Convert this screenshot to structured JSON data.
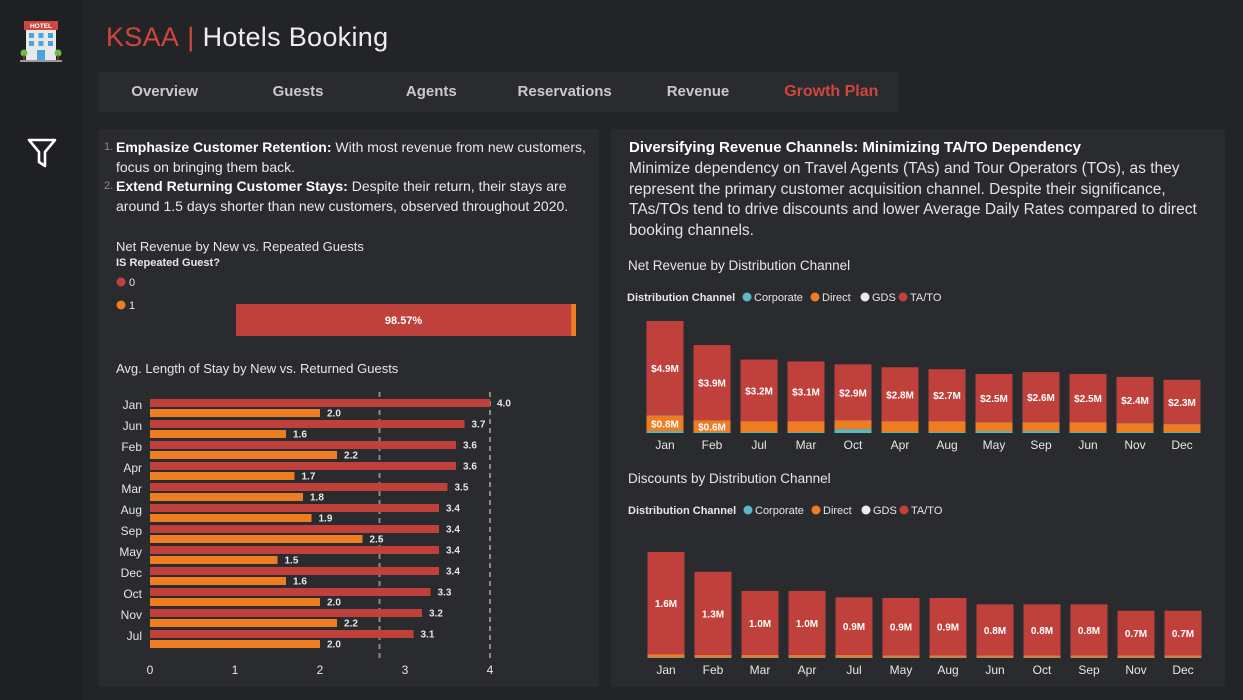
{
  "header": {
    "brand": "KSAA",
    "separator": "|",
    "app_name": "Hotels Booking",
    "logo_sign": "HOTEL"
  },
  "nav": {
    "tabs": [
      "Overview",
      "Guests",
      "Agents",
      "Reservations",
      "Revenue",
      "Growth Plan"
    ],
    "active_index": 5
  },
  "left_notes": [
    {
      "number": "1.",
      "bold": "Emphasize Customer Retention:",
      "text": " With most revenue from new customers, focus on bringing them back."
    },
    {
      "number": "2.",
      "bold": "Extend Returning Customer Stays:",
      "text": " Despite their return, their stays are around 1.5 days shorter than new customers, observed throughout 2020."
    }
  ],
  "right_heading": "Diversifying Revenue Channels: Minimizing TA/TO Dependency",
  "right_paragraph": "Minimize dependency on Travel Agents (TAs) and Tour Operators (TOs), as they represent the primary customer acquisition channel. Despite their significance, TAs/TOs tend to drive discounts and lower Average Daily Rates compared to direct booking channels.",
  "chart_data": [
    {
      "id": "repeated-guest-revenue",
      "type": "bar",
      "orientation": "horizontal",
      "stacked": "100%",
      "title": "Net Revenue by New vs. Repeated Guests",
      "legend_title": "IS Repeated Guest?",
      "legend_placement": "top-left",
      "series": [
        {
          "name": "0",
          "percent": 98.57,
          "label": "98.57%",
          "color": "#c0403c"
        },
        {
          "name": "1",
          "percent": 1.43,
          "label": "",
          "color": "#ee7d22"
        }
      ]
    },
    {
      "id": "avg-length-of-stay",
      "type": "bar",
      "orientation": "horizontal",
      "title": "Avg. Length of Stay by New vs. Returned Guests",
      "categories": [
        "Jan",
        "Jun",
        "Feb",
        "Apr",
        "Mar",
        "Aug",
        "Sep",
        "May",
        "Dec",
        "Oct",
        "Nov",
        "Jul"
      ],
      "series": [
        {
          "name": "New",
          "color": "#c0403c",
          "values": [
            4.0,
            3.7,
            3.6,
            3.6,
            3.5,
            3.4,
            3.4,
            3.4,
            3.4,
            3.3,
            3.2,
            3.1
          ],
          "labels": [
            "4.0",
            "3.7",
            "3.6",
            "3.6",
            "3.5",
            "3.4",
            "3.4",
            "3.4",
            "3.4",
            "3.3",
            "3.2",
            "3.1"
          ]
        },
        {
          "name": "Returned",
          "color": "#ee7d22",
          "values": [
            2.0,
            1.6,
            2.2,
            1.7,
            1.8,
            1.9,
            2.5,
            1.5,
            1.6,
            2.0,
            2.2,
            2.0
          ],
          "labels": [
            "2.0",
            "1.6",
            "2.2",
            "1.7",
            "1.8",
            "1.9",
            "2.5",
            "1.5",
            "1.6",
            "2.0",
            "2.2",
            "2.0"
          ]
        }
      ],
      "xlim": [
        0,
        4
      ],
      "x_ticks": [
        "0",
        "1",
        "2",
        "3",
        "4"
      ],
      "reference_lines": [
        2.7,
        4.0
      ]
    },
    {
      "id": "net-revenue-by-channel",
      "type": "bar",
      "stacked": true,
      "title": "Net Revenue by Distribution Channel",
      "legend_title": "Distribution Channel",
      "legend_placement": "top-left",
      "categories": [
        "Jan",
        "Feb",
        "Jul",
        "Mar",
        "Oct",
        "Apr",
        "Aug",
        "May",
        "Sep",
        "Jun",
        "Nov",
        "Dec"
      ],
      "unit": "$M",
      "series": [
        {
          "name": "Corporate",
          "color": "#5bb8c4",
          "values": [
            0.1,
            0.05,
            0.05,
            0.05,
            0.2,
            0.05,
            0.05,
            0.1,
            0.1,
            0.05,
            0.05,
            0.05
          ],
          "labels": []
        },
        {
          "name": "Direct",
          "color": "#ee7d22",
          "values": [
            0.8,
            0.6,
            0.55,
            0.55,
            0.45,
            0.55,
            0.55,
            0.45,
            0.45,
            0.5,
            0.45,
            0.4
          ],
          "labels": [
            "$0.8M",
            "$0.6M",
            "",
            "",
            "",
            "",
            "",
            "",
            "",
            "",
            "",
            ""
          ]
        },
        {
          "name": "GDS",
          "color": "#ececec",
          "values": [
            0.01,
            0.01,
            0.01,
            0.01,
            0.01,
            0.01,
            0.01,
            0.01,
            0.01,
            0.01,
            0.01,
            0.01
          ],
          "labels": []
        },
        {
          "name": "TA/TO",
          "color": "#c0403c",
          "values": [
            4.9,
            3.9,
            3.2,
            3.1,
            2.9,
            2.8,
            2.7,
            2.5,
            2.6,
            2.5,
            2.4,
            2.3
          ],
          "labels": [
            "$4.9M",
            "$3.9M",
            "$3.2M",
            "$3.1M",
            "$2.9M",
            "$2.8M",
            "$2.7M",
            "$2.5M",
            "$2.6M",
            "$2.5M",
            "$2.4M",
            "$2.3M"
          ]
        }
      ]
    },
    {
      "id": "discounts-by-channel",
      "type": "bar",
      "stacked": true,
      "title": "Discounts by Distribution Channel",
      "legend_title": "Distribution Channel",
      "legend_placement": "top-left",
      "categories": [
        "Jan",
        "Feb",
        "Mar",
        "Apr",
        "Jul",
        "May",
        "Aug",
        "Jun",
        "Oct",
        "Sep",
        "Nov",
        "Dec"
      ],
      "unit": "M",
      "series": [
        {
          "name": "Corporate",
          "color": "#5bb8c4",
          "values": [
            0.01,
            0.01,
            0.01,
            0.01,
            0.01,
            0.01,
            0.01,
            0.01,
            0.01,
            0.01,
            0.01,
            0.01
          ],
          "labels": []
        },
        {
          "name": "Direct",
          "color": "#ee7d22",
          "values": [
            0.05,
            0.04,
            0.04,
            0.04,
            0.04,
            0.03,
            0.03,
            0.03,
            0.03,
            0.03,
            0.03,
            0.03
          ],
          "labels": []
        },
        {
          "name": "GDS",
          "color": "#ececec",
          "values": [
            0.0,
            0.0,
            0.0,
            0.0,
            0.0,
            0.0,
            0.0,
            0.0,
            0.0,
            0.0,
            0.0,
            0.0
          ],
          "labels": []
        },
        {
          "name": "TA/TO",
          "color": "#c0403c",
          "values": [
            1.6,
            1.3,
            1.0,
            1.0,
            0.9,
            0.9,
            0.9,
            0.8,
            0.8,
            0.8,
            0.7,
            0.7
          ],
          "labels": [
            "1.6M",
            "1.3M",
            "1.0M",
            "1.0M",
            "0.9M",
            "0.9M",
            "0.9M",
            "0.8M",
            "0.8M",
            "0.8M",
            "0.7M",
            "0.7M"
          ]
        }
      ]
    }
  ]
}
